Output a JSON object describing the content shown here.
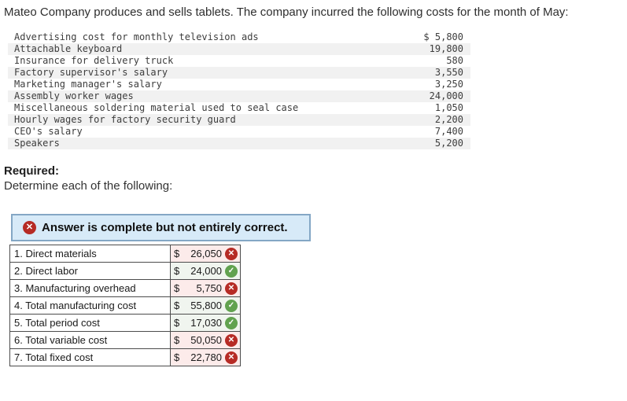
{
  "title": "Mateo Company produces and sells tablets. The company incurred the following costs for the month of May:",
  "cost_table": {
    "rows": [
      {
        "label": "Advertising cost for monthly television ads",
        "amount": "$ 5,800"
      },
      {
        "label": "Attachable keyboard",
        "amount": "19,800"
      },
      {
        "label": "Insurance for delivery truck",
        "amount": "580"
      },
      {
        "label": "Factory supervisor's salary",
        "amount": "3,550"
      },
      {
        "label": "Marketing manager's salary",
        "amount": "3,250"
      },
      {
        "label": "Assembly worker wages",
        "amount": "24,000"
      },
      {
        "label": "Miscellaneous soldering material used to seal case",
        "amount": "1,050"
      },
      {
        "label": "Hourly wages for factory security guard",
        "amount": "2,200"
      },
      {
        "label": "CEO's salary",
        "amount": "7,400"
      },
      {
        "label": "Speakers",
        "amount": "5,200"
      }
    ]
  },
  "required": {
    "heading": "Required:",
    "instruction": "Determine each of the following:"
  },
  "banner": {
    "text": "Answer is complete but not entirely correct."
  },
  "answer_table": {
    "rows": [
      {
        "label": "1. Direct materials",
        "currency": "$",
        "value": "26,050",
        "status": "incorrect"
      },
      {
        "label": "2. Direct labor",
        "currency": "$",
        "value": "24,000",
        "status": "correct"
      },
      {
        "label": "3. Manufacturing overhead",
        "currency": "$",
        "value": "5,750",
        "status": "incorrect"
      },
      {
        "label": "4. Total manufacturing cost",
        "currency": "$",
        "value": "55,800",
        "status": "correct"
      },
      {
        "label": "5. Total period cost",
        "currency": "$",
        "value": "17,030",
        "status": "correct"
      },
      {
        "label": "6. Total variable cost",
        "currency": "$",
        "value": "50,050",
        "status": "incorrect"
      },
      {
        "label": "7. Total fixed cost",
        "currency": "$",
        "value": "22,780",
        "status": "incorrect"
      }
    ]
  },
  "icons": {
    "correct": "✓",
    "incorrect": "✕"
  },
  "colors": {
    "banner_bg": "#d7eaf8",
    "banner_border": "#84a7c5",
    "incorrect_red": "#b62b25",
    "correct_green": "#61a24f",
    "cell_wrong_bg": "#fcebea",
    "cell_correct_bg": "#f0f5ef",
    "stripe_gray": "#f1f1f1",
    "table_border": "#4c4c4c"
  }
}
